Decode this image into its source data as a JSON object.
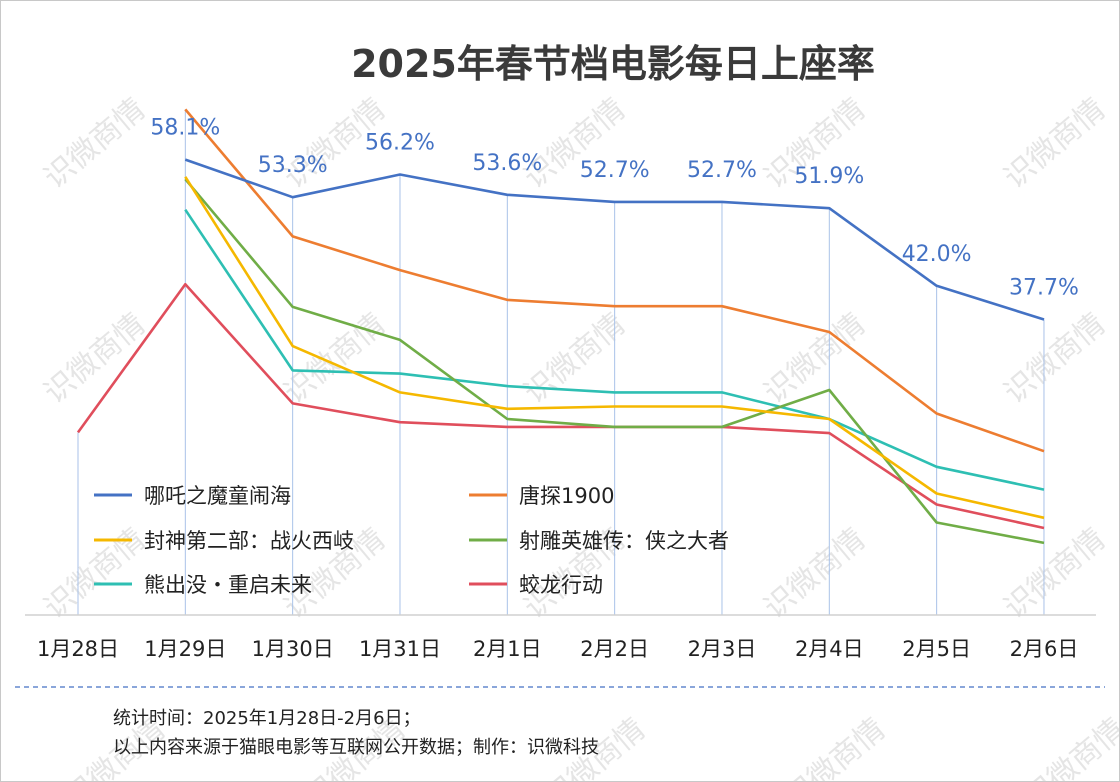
{
  "chart_data": {
    "type": "line",
    "title": "2025年春节档电影每日上座率",
    "categories": [
      "1月28日",
      "1月29日",
      "1月30日",
      "1月31日",
      "2月1日",
      "2月2日",
      "2月3日",
      "2月4日",
      "2月5日",
      "2月6日"
    ],
    "ylim": [
      0,
      62
    ],
    "series": [
      {
        "name": "哪吒之魔童闹海",
        "color": "#4472c4",
        "values": [
          null,
          58.1,
          53.3,
          56.2,
          53.6,
          52.7,
          52.7,
          51.9,
          42.0,
          37.7
        ],
        "labels": [
          "",
          "58.1%",
          "53.3%",
          "56.2%",
          "53.6%",
          "52.7%",
          "52.7%",
          "51.9%",
          "42.0%",
          "37.7%"
        ]
      },
      {
        "name": "唐探1900",
        "color": "#ed7d31",
        "values": [
          null,
          64.5,
          48.3,
          44.0,
          40.2,
          39.4,
          39.4,
          36.1,
          25.7,
          20.9
        ]
      },
      {
        "name": "封神第二部：战火西岐",
        "color": "#f5b800",
        "values": [
          null,
          55.9,
          34.3,
          28.4,
          26.3,
          26.6,
          26.6,
          25.0,
          15.5,
          12.4
        ]
      },
      {
        "name": "射雕英雄传：侠之大者",
        "color": "#70ad47",
        "values": [
          null,
          55.6,
          39.3,
          35.1,
          25.0,
          24.0,
          24.0,
          28.7,
          11.8,
          9.2
        ]
      },
      {
        "name": "熊出没・重启未来",
        "color": "#2ebfb3",
        "values": [
          null,
          51.7,
          31.2,
          30.8,
          29.2,
          28.4,
          28.4,
          25.0,
          18.9,
          16.0
        ]
      },
      {
        "name": "蛟龙行动",
        "color": "#e04e5c",
        "values": [
          23.3,
          42.2,
          27.0,
          24.6,
          24.0,
          24.0,
          24.0,
          23.2,
          14.1,
          11.1
        ]
      }
    ]
  },
  "footer": {
    "line1": "统计时间：2025年1月28日-2月6日；",
    "line2": "以上内容来源于猫眼电影等互联网公开数据；制作：识微科技"
  },
  "watermark": "识微商情"
}
